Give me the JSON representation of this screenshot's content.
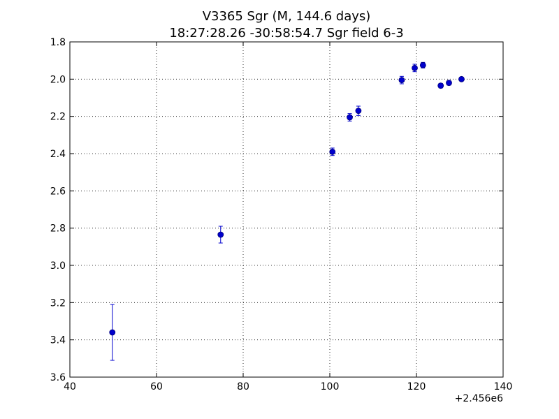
{
  "chart_data": {
    "type": "scatter",
    "title": "V3365 Sgr  (M, 144.6 days)",
    "subtitle": "18:27:28.26 -30:58:54.7 Sgr field 6-3",
    "xlabel": "",
    "ylabel": "",
    "x_offset_label": "+2.456e6",
    "xlim": [
      40,
      140
    ],
    "ylim": [
      1.8,
      3.6
    ],
    "y_inverted": true,
    "grid": true,
    "x_ticks": [
      "40",
      "60",
      "80",
      "100",
      "120",
      "140"
    ],
    "y_ticks": [
      "1.8",
      "2.0",
      "2.2",
      "2.4",
      "2.6",
      "2.8",
      "3.0",
      "3.2",
      "3.4",
      "3.6"
    ],
    "series": [
      {
        "color": "#0000cc",
        "marker": "circle",
        "points": [
          {
            "x": 49.8,
            "y": 3.36,
            "err": 0.15
          },
          {
            "x": 74.8,
            "y": 2.835,
            "err": 0.045
          },
          {
            "x": 100.6,
            "y": 2.39,
            "err": 0.02
          },
          {
            "x": 104.6,
            "y": 2.205,
            "err": 0.02
          },
          {
            "x": 106.6,
            "y": 2.17,
            "err": 0.025
          },
          {
            "x": 116.6,
            "y": 2.005,
            "err": 0.02
          },
          {
            "x": 119.6,
            "y": 1.94,
            "err": 0.02
          },
          {
            "x": 121.5,
            "y": 1.925,
            "err": 0.015
          },
          {
            "x": 125.6,
            "y": 2.035,
            "err": 0.012
          },
          {
            "x": 127.5,
            "y": 2.02,
            "err": 0.012
          },
          {
            "x": 130.4,
            "y": 2.0,
            "err": 0.01
          }
        ]
      }
    ]
  }
}
